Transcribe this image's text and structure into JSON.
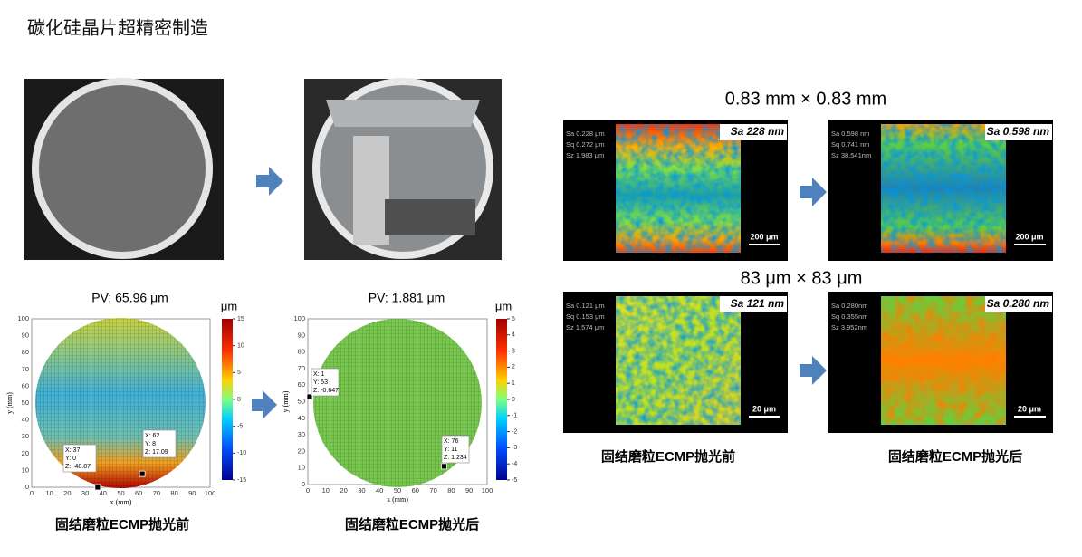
{
  "title": "碳化硅晶片超精密制造",
  "profilometry": [
    {
      "pv": "PV: 65.96 μm",
      "unit": "μm",
      "colorbar_ticks": [
        "15",
        "10",
        "5",
        "0",
        "-5",
        "-10",
        "-15"
      ],
      "x_label": "x (mm)",
      "y_label": "y (mm)",
      "x_ticks": [
        "0",
        "10",
        "20",
        "30",
        "40",
        "50",
        "60",
        "70",
        "80",
        "90",
        "100"
      ],
      "y_ticks": [
        "100",
        "90",
        "80",
        "70",
        "60",
        "50",
        "40",
        "30",
        "20",
        "10",
        "0"
      ],
      "markers": [
        [
          "X: 37",
          "Y: 0",
          "Z: -48.87"
        ],
        [
          "X: 62",
          "Y: 8",
          "Z: 17.09"
        ]
      ],
      "caption": "固结磨粒ECMP抛光前"
    },
    {
      "pv": "PV: 1.881 μm",
      "unit": "μm",
      "colorbar_ticks": [
        "5",
        "4",
        "3",
        "2",
        "1",
        "0",
        "-1",
        "-2",
        "-3",
        "-4",
        "-5"
      ],
      "x_label": "x (mm)",
      "y_label": "y (mm)",
      "x_ticks": [
        "0",
        "10",
        "20",
        "30",
        "40",
        "50",
        "60",
        "70",
        "80",
        "90",
        "100"
      ],
      "y_ticks": [
        "100",
        "90",
        "80",
        "70",
        "60",
        "50",
        "40",
        "30",
        "20",
        "10",
        "0"
      ],
      "markers": [
        [
          "X: 1",
          "Y: 53",
          "Z: -0.647"
        ],
        [
          "X: 76",
          "Y: 11",
          "Z: 1.234"
        ]
      ],
      "caption": "固结磨粒ECMP抛光后"
    }
  ],
  "afm": {
    "scales": [
      "0.83 mm × 0.83 mm",
      "83 μm × 83 μm"
    ],
    "panels": [
      {
        "sa": "Sa 228 nm",
        "stats": [
          "Sa 0.228 μm",
          "Sq 0.272 μm",
          "Sz 1.983 μm"
        ],
        "scale_bar": "200 μm"
      },
      {
        "sa": "Sa 0.598 nm",
        "stats": [
          "Sa 0.598 nm",
          "Sq 0.741 nm",
          "Sz 38.541nm"
        ],
        "scale_bar": "200 μm"
      },
      {
        "sa": "Sa 121 nm",
        "stats": [
          "Sa 0.121 μm",
          "Sq 0.153 μm",
          "Sz 1.574 μm"
        ],
        "scale_bar": "20 μm"
      },
      {
        "sa": "Sa 0.280 nm",
        "stats": [
          "Sa 0.280nm",
          "Sq 0.355nm",
          "Sz 3.952nm"
        ],
        "scale_bar": "20 μm"
      }
    ],
    "captions": [
      "固结磨粒ECMP抛光前",
      "固结磨粒ECMP抛光后"
    ]
  }
}
